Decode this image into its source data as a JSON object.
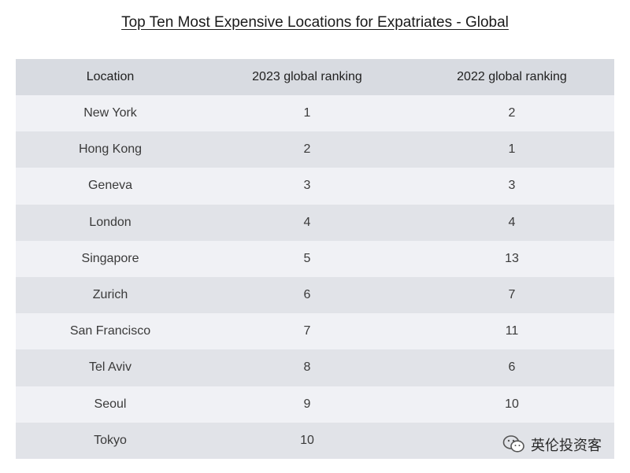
{
  "chart_data": {
    "type": "table",
    "title": "Top Ten Most Expensive Locations for Expatriates - Global",
    "columns": [
      "Location",
      "2023 global ranking",
      "2022 global ranking"
    ],
    "rows": [
      [
        "New York",
        "1",
        "2"
      ],
      [
        "Hong Kong",
        "2",
        "1"
      ],
      [
        "Geneva",
        "3",
        "3"
      ],
      [
        "London",
        "4",
        "4"
      ],
      [
        "Singapore",
        "5",
        "13"
      ],
      [
        "Zurich",
        "6",
        "7"
      ],
      [
        "San Francisco",
        "7",
        "11"
      ],
      [
        "Tel Aviv",
        "8",
        "6"
      ],
      [
        "Seoul",
        "9",
        "10"
      ],
      [
        "Tokyo",
        "10",
        ""
      ]
    ]
  },
  "watermark": {
    "text": "英伦投资客",
    "icon": "wechat-icon"
  },
  "colors": {
    "header_bg": "#d8dbe1",
    "row_light": "#f0f1f5",
    "row_dark": "#e1e3e8"
  }
}
